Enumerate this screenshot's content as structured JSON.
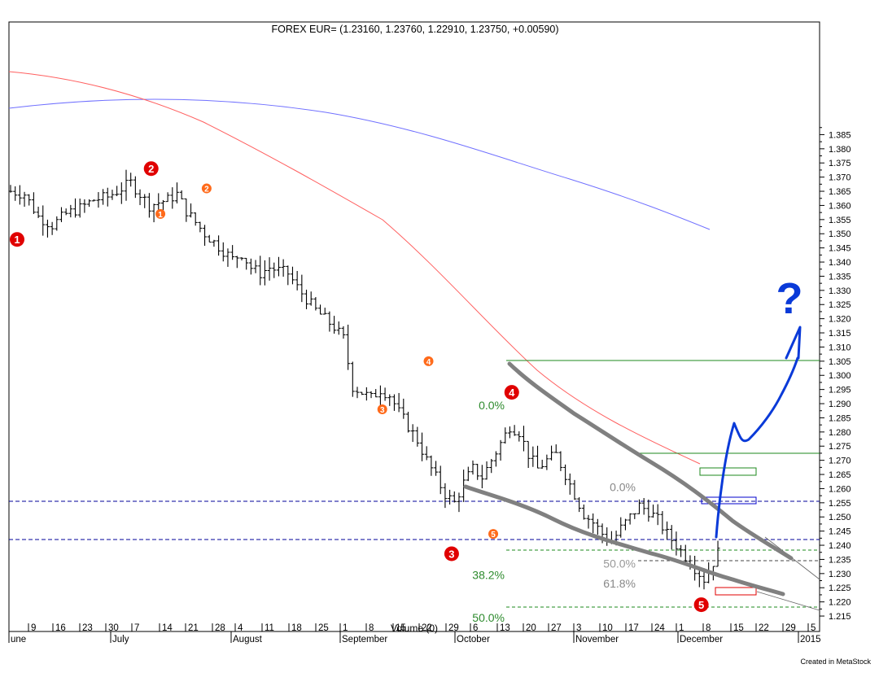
{
  "chart_data": {
    "type": "ohlc",
    "title": "FOREX EUR= (1.23160, 1.23760, 1.22910, 1.23750, +0.00590)",
    "ylim": [
      1.21,
      1.39
    ],
    "y_ticks": [
      "1.215",
      "1.220",
      "1.225",
      "1.230",
      "1.235",
      "1.240",
      "1.245",
      "1.250",
      "1.255",
      "1.260",
      "1.265",
      "1.270",
      "1.275",
      "1.280",
      "1.285",
      "1.290",
      "1.295",
      "1.300",
      "1.305",
      "1.310",
      "1.315",
      "1.320",
      "1.325",
      "1.330",
      "1.335",
      "1.340",
      "1.345",
      "1.350",
      "1.355",
      "1.360",
      "1.365",
      "1.370",
      "1.375",
      "1.380",
      "1.385"
    ],
    "x_day_ticks": [
      "9",
      "16",
      "23",
      "30",
      "7",
      "14",
      "21",
      "28",
      "4",
      "11",
      "18",
      "25",
      "1",
      "8",
      "15",
      "22",
      "29",
      "6",
      "13",
      "20",
      "27",
      "3",
      "10",
      "17",
      "24",
      "1",
      "8",
      "15",
      "22",
      "29",
      "5"
    ],
    "x_month_labels": [
      "une",
      "July",
      "August",
      "September",
      "October",
      "November",
      "December",
      "2015"
    ],
    "volume_label": "Volume (0)",
    "credit": "Created in MetaStock",
    "price_path": [
      [
        0,
        1.365
      ],
      [
        3,
        1.364
      ],
      [
        6,
        1.356
      ],
      [
        9,
        1.353
      ],
      [
        12,
        1.357
      ],
      [
        15,
        1.359
      ],
      [
        18,
        1.362
      ],
      [
        21,
        1.363
      ],
      [
        24,
        1.366
      ],
      [
        26,
        1.368
      ],
      [
        28,
        1.364
      ],
      [
        30,
        1.36
      ],
      [
        32,
        1.361
      ],
      [
        34,
        1.362
      ],
      [
        36,
        1.364
      ],
      [
        38,
        1.358
      ],
      [
        40,
        1.354
      ],
      [
        42,
        1.35
      ],
      [
        44,
        1.347
      ],
      [
        46,
        1.344
      ],
      [
        48,
        1.341
      ],
      [
        50,
        1.343
      ],
      [
        52,
        1.338
      ],
      [
        54,
        1.336
      ],
      [
        56,
        1.338
      ],
      [
        58,
        1.337
      ],
      [
        60,
        1.336
      ],
      [
        62,
        1.331
      ],
      [
        64,
        1.327
      ],
      [
        66,
        1.323
      ],
      [
        68,
        1.32
      ],
      [
        70,
        1.317
      ],
      [
        72,
        1.313
      ],
      [
        74,
        1.296
      ],
      [
        76,
        1.294
      ],
      [
        78,
        1.292
      ],
      [
        80,
        1.295
      ],
      [
        82,
        1.293
      ],
      [
        84,
        1.287
      ],
      [
        86,
        1.282
      ],
      [
        88,
        1.277
      ],
      [
        90,
        1.27
      ],
      [
        92,
        1.264
      ],
      [
        94,
        1.258
      ],
      [
        96,
        1.255
      ],
      [
        98,
        1.262
      ],
      [
        100,
        1.267
      ],
      [
        102,
        1.264
      ],
      [
        104,
        1.27
      ],
      [
        106,
        1.276
      ],
      [
        108,
        1.282
      ],
      [
        110,
        1.28
      ],
      [
        112,
        1.272
      ],
      [
        114,
        1.267
      ],
      [
        116,
        1.27
      ],
      [
        118,
        1.272
      ],
      [
        120,
        1.265
      ],
      [
        122,
        1.258
      ],
      [
        124,
        1.251
      ],
      [
        126,
        1.248
      ],
      [
        128,
        1.244
      ],
      [
        130,
        1.241
      ],
      [
        132,
        1.246
      ],
      [
        134,
        1.25
      ],
      [
        136,
        1.254
      ],
      [
        138,
        1.252
      ],
      [
        140,
        1.249
      ],
      [
        142,
        1.244
      ],
      [
        144,
        1.24
      ],
      [
        146,
        1.236
      ],
      [
        148,
        1.232
      ],
      [
        150,
        1.228
      ],
      [
        152,
        1.234
      ],
      [
        153,
        1.2375
      ]
    ],
    "wave_labels": [
      {
        "text": "1",
        "day": 0,
        "price": 1.348,
        "color": "#e00000",
        "size": "large"
      },
      {
        "text": "2",
        "day": 29,
        "price": 1.373,
        "color": "#e00000",
        "size": "large"
      },
      {
        "text": "3",
        "day": 94,
        "price": 1.237,
        "color": "#e00000",
        "size": "large"
      },
      {
        "text": "4",
        "day": 107,
        "price": 1.294,
        "color": "#e00000",
        "size": "large"
      },
      {
        "text": "5",
        "day": 148,
        "price": 1.219,
        "color": "#e00000",
        "size": "large"
      },
      {
        "text": "1",
        "day": 31,
        "price": 1.357,
        "color": "#ff6a1a",
        "size": "small"
      },
      {
        "text": "2",
        "day": 41,
        "price": 1.366,
        "color": "#ff6a1a",
        "size": "small"
      },
      {
        "text": "3",
        "day": 79,
        "price": 1.288,
        "color": "#ff6a1a",
        "size": "small"
      },
      {
        "text": "4",
        "day": 89,
        "price": 1.305,
        "color": "#ff6a1a",
        "size": "small"
      },
      {
        "text": "5",
        "day": 103,
        "price": 1.244,
        "color": "#ff6a1a",
        "size": "small"
      }
    ],
    "fib_labels": [
      {
        "text": "0.0%",
        "price": 1.2895,
        "color": "#2e8b2e"
      },
      {
        "text": "38.2%",
        "price": 1.2295,
        "color": "#2e8b2e"
      },
      {
        "text": "50.0%",
        "price": 1.2145,
        "color": "#2e8b2e"
      },
      {
        "text": "0.0%",
        "price": 1.2605,
        "color": "#888888"
      },
      {
        "text": "50.0%",
        "price": 1.2335,
        "color": "#999999"
      },
      {
        "text": "61.8%",
        "price": 1.2265,
        "color": "#888888"
      }
    ],
    "annotation": "?",
    "colors": {
      "ma_short": "#ff6060",
      "ma_long": "#7070ff",
      "trendline": "#808080",
      "handdrawn": "#0a3ad8",
      "fib_green": "#2e8b2e",
      "hline_blue": "#000099",
      "grid_hline": "#1e8a1e"
    }
  }
}
